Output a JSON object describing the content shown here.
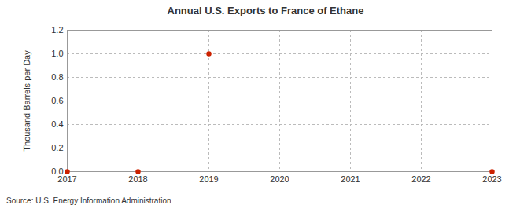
{
  "chart_data": {
    "type": "scatter",
    "title": "Annual U.S. Exports to France of Ethane",
    "y_label": "Thousand Barrels per Day",
    "source": "Source: U.S. Energy Information Administration",
    "x": [
      2017,
      2018,
      2019,
      2023
    ],
    "values": [
      0,
      0,
      1.0,
      0
    ],
    "color": "#cc2200",
    "marker": "circle",
    "xlim": [
      2017,
      2023
    ],
    "xticks": [
      2017,
      2018,
      2019,
      2020,
      2021,
      2022,
      2023
    ],
    "ylim": [
      0,
      1.2
    ],
    "yticks": [
      {
        "value": 0,
        "label": "0.0"
      },
      0.2,
      0.4,
      0.6,
      0.8,
      {
        "value": 1.0,
        "label": "1.0"
      },
      1.2
    ],
    "grid": true
  }
}
